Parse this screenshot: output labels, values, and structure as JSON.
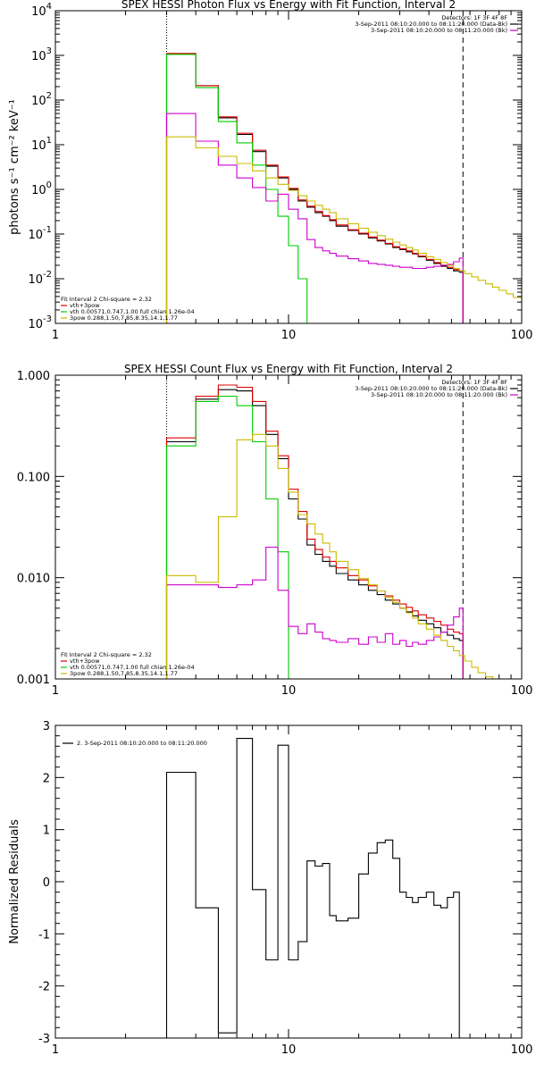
{
  "chart_data": [
    {
      "type": "line",
      "title": "SPEX HESSI Photon Flux vs Energy with Fit Function, Interval 2",
      "xlabel": "",
      "ylabel": "photons s⁻¹ cm⁻² keV⁻¹",
      "xscale": "log",
      "yscale": "log",
      "xlim": [
        1,
        100
      ],
      "ylim": [
        0.001,
        10000
      ],
      "xticks": [
        1,
        10,
        100
      ],
      "yticks": [
        {
          "mant": "10",
          "exp": "-3",
          "v": 0.001
        },
        {
          "mant": "10",
          "exp": "-2",
          "v": 0.01
        },
        {
          "mant": "10",
          "exp": "-1",
          "v": 0.1
        },
        {
          "mant": "10",
          "exp": "0",
          "v": 1
        },
        {
          "mant": "10",
          "exp": "1",
          "v": 10
        },
        {
          "mant": "10",
          "exp": "2",
          "v": 100
        },
        {
          "mant": "10",
          "exp": "3",
          "v": 1000
        },
        {
          "mant": "10",
          "exp": "4",
          "v": 10000
        }
      ],
      "vlines": [
        {
          "x": 3.0,
          "style": "dotted"
        },
        {
          "x": 56,
          "style": "dashed"
        }
      ],
      "top_legend": [
        {
          "text": "Detectors: 1F 3F 4F 8F",
          "color": ""
        },
        {
          "text": "3-Sep-2011 08:10:20.000 to 08:11:20.000 (Data-Bk)",
          "color": "#000000"
        },
        {
          "text": "3-Sep-2011 08:10:20.000 to 08:11:20.000 (Bk)",
          "color": "#cc00cc"
        }
      ],
      "fit_legend": [
        {
          "text": "Fit Interval 2   Chi-square = 2.32",
          "color": ""
        },
        {
          "text": "vth+3pow",
          "color": "#dd0000"
        },
        {
          "text": "vth 0.00571,0.747,1.00  full chian 1.26e-04",
          "color": "#00cc00"
        },
        {
          "text": "3pow 0.288,1.50,7.85,8.35,14.1,1.77",
          "color": "#ccbb00"
        }
      ],
      "series": [
        {
          "color": "#000000",
          "x_start": 3.0,
          "edges": [
            4.0,
            5.0,
            6.0,
            7.0,
            8.0,
            9.0,
            10.0,
            11.0,
            12.0,
            13.0,
            14.0,
            15.0,
            16.0,
            18.0,
            20.0,
            22.0,
            24.0,
            26.0,
            28.0,
            30.0,
            32.0,
            34.0,
            36.0,
            39.0,
            42.0,
            45.0,
            48.0,
            51.0,
            54.0,
            56.0
          ],
          "values": [
            1100,
            210,
            40,
            17,
            7,
            3.3,
            1.8,
            1.0,
            0.55,
            0.4,
            0.3,
            0.25,
            0.2,
            0.15,
            0.12,
            0.1,
            0.082,
            0.07,
            0.06,
            0.05,
            0.045,
            0.04,
            0.036,
            0.031,
            0.026,
            0.022,
            0.019,
            0.017,
            0.015,
            0.014
          ]
        },
        {
          "color": "#dd0000",
          "x_start": 3.0,
          "edges": [
            4.0,
            5.0,
            6.0,
            7.0,
            8.0,
            9.0,
            10.0,
            11.0,
            12.0,
            13.0,
            14.0,
            15.0,
            16.0,
            18.0,
            20.0,
            22.0,
            24.0,
            26.0,
            28.0,
            30.0,
            32.0,
            34.0,
            36.0,
            39.0,
            42.0,
            45.0,
            48.0,
            51.0,
            54.0,
            56.0
          ],
          "values": [
            1100,
            210,
            42,
            18,
            7.5,
            3.5,
            1.9,
            1.05,
            0.58,
            0.42,
            0.32,
            0.26,
            0.21,
            0.16,
            0.125,
            0.104,
            0.086,
            0.073,
            0.062,
            0.052,
            0.047,
            0.042,
            0.037,
            0.032,
            0.027,
            0.023,
            0.02,
            0.018,
            0.016,
            0.015
          ]
        },
        {
          "color": "#00cc00",
          "x_start": 3.0,
          "edges": [
            4.0,
            5.0,
            6.0,
            7.0,
            8.0,
            9.0,
            10.0,
            11.0,
            12.0
          ],
          "values": [
            1050,
            190,
            33,
            11,
            3.5,
            1.0,
            0.25,
            0.055,
            0.01
          ]
        },
        {
          "color": "#cc00cc",
          "x_start": 3.0,
          "edges": [
            4.0,
            5.0,
            6.0,
            7.0,
            8.0,
            9.0,
            10.0,
            11.0,
            12.0,
            13.0,
            14.0,
            15.0,
            16.0,
            18.0,
            20.0,
            22.0,
            24.0,
            26.0,
            28.0,
            30.0,
            32.0,
            34.0,
            36.0,
            39.0,
            42.0,
            45.0,
            48.0,
            51.0,
            54.0,
            56.0
          ],
          "values": [
            50,
            12,
            3.5,
            1.8,
            1.1,
            0.55,
            0.78,
            0.36,
            0.22,
            0.075,
            0.05,
            0.042,
            0.037,
            0.032,
            0.028,
            0.025,
            0.022,
            0.021,
            0.02,
            0.019,
            0.018,
            0.018,
            0.017,
            0.017,
            0.018,
            0.019,
            0.02,
            0.021,
            0.024,
            0.029
          ]
        },
        {
          "color": "#ccbb00",
          "x_start": 3.0,
          "edges": [
            4.0,
            5.0,
            6.0,
            7.0,
            8.0,
            9.0,
            10.0,
            11.0,
            12.0,
            13.0,
            14.0,
            15.0,
            16.0,
            18.0,
            20.0,
            22.0,
            24.0,
            26.0,
            28.0,
            30.0,
            32.0,
            34.0,
            36.0,
            39.0,
            42.0,
            45.0,
            48.0,
            51.0,
            54.0,
            57.0,
            61.0,
            65.0,
            70.0,
            75.0,
            80.0,
            86.0,
            92.0,
            100.0
          ],
          "values": [
            15,
            8.5,
            5.5,
            3.8,
            2.6,
            1.8,
            1.3,
            0.95,
            0.72,
            0.55,
            0.44,
            0.36,
            0.3,
            0.22,
            0.17,
            0.135,
            0.11,
            0.092,
            0.077,
            0.066,
            0.057,
            0.05,
            0.044,
            0.037,
            0.031,
            0.027,
            0.023,
            0.02,
            0.017,
            0.015,
            0.013,
            0.011,
            0.0092,
            0.0077,
            0.0065,
            0.0055,
            0.0046,
            0.0038
          ]
        }
      ]
    },
    {
      "type": "line",
      "title": "SPEX HESSI Count Flux vs Energy with Fit Function, Interval 2",
      "xlabel": "",
      "ylabel": "",
      "xscale": "log",
      "yscale": "log",
      "xlim": [
        1,
        100
      ],
      "ylim": [
        0.001,
        1.0
      ],
      "xticks": [
        1,
        10,
        100
      ],
      "yticks": [
        {
          "text": "0.001",
          "v": 0.001
        },
        {
          "text": "0.010",
          "v": 0.01
        },
        {
          "text": "0.100",
          "v": 0.1
        },
        {
          "text": "1.000",
          "v": 1.0
        }
      ],
      "vlines": [
        {
          "x": 3.0,
          "style": "dotted"
        },
        {
          "x": 56,
          "style": "dashed"
        }
      ],
      "top_legend": [
        {
          "text": "Detectors: 1F 3F 4F 8F",
          "color": ""
        },
        {
          "text": "3-Sep-2011 08:10:20.000 to 08:11:20.000 (Data-Bk)",
          "color": "#000000"
        },
        {
          "text": "3-Sep-2011 08:10:20.000 to 08:11:20.000 (Bk)",
          "color": "#cc00cc"
        }
      ],
      "fit_legend": [
        {
          "text": "Fit Interval 2   Chi-square = 2.32",
          "color": ""
        },
        {
          "text": "vth+3pow",
          "color": "#dd0000"
        },
        {
          "text": "vth 0.00571,0.747,1.00  full chian 1.26e-04",
          "color": "#00cc00"
        },
        {
          "text": "3pow 0.288,1.50,7.85,8.35,14.1,1.77",
          "color": "#ccbb00"
        }
      ],
      "series": [
        {
          "color": "#000000",
          "x_start": 3.0,
          "edges": [
            4.0,
            5.0,
            6.0,
            7.0,
            8.0,
            9.0,
            10.0,
            11.0,
            12.0,
            13.0,
            14.0,
            15.0,
            16.0,
            18.0,
            20.0,
            22.0,
            24.0,
            26.0,
            28.0,
            30.0,
            32.0,
            34.0,
            36.0,
            39.0,
            42.0,
            45.0,
            48.0,
            51.0,
            54.0,
            56.0
          ],
          "values": [
            0.22,
            0.58,
            0.72,
            0.7,
            0.5,
            0.26,
            0.15,
            0.06,
            0.038,
            0.021,
            0.017,
            0.0145,
            0.013,
            0.011,
            0.0095,
            0.0085,
            0.0075,
            0.0068,
            0.006,
            0.0055,
            0.005,
            0.0046,
            0.0042,
            0.0038,
            0.0035,
            0.0032,
            0.0029,
            0.0027,
            0.0025,
            0.0024
          ]
        },
        {
          "color": "#dd0000",
          "x_start": 3.0,
          "edges": [
            4.0,
            5.0,
            6.0,
            7.0,
            8.0,
            9.0,
            10.0,
            11.0,
            12.0,
            13.0,
            14.0,
            15.0,
            16.0,
            18.0,
            20.0,
            22.0,
            24.0,
            26.0,
            28.0,
            30.0,
            32.0,
            34.0,
            36.0,
            39.0,
            42.0,
            45.0,
            48.0,
            51.0,
            54.0,
            56.0
          ],
          "values": [
            0.24,
            0.62,
            0.8,
            0.76,
            0.55,
            0.28,
            0.16,
            0.075,
            0.045,
            0.024,
            0.019,
            0.016,
            0.0145,
            0.0125,
            0.0105,
            0.0095,
            0.0083,
            0.0074,
            0.0066,
            0.006,
            0.0055,
            0.0051,
            0.0047,
            0.0043,
            0.004,
            0.0037,
            0.0034,
            0.0031,
            0.0029,
            0.0028
          ]
        },
        {
          "color": "#00cc00",
          "x_start": 3.0,
          "edges": [
            4.0,
            5.0,
            6.0,
            7.0,
            8.0,
            9.0,
            10.0,
            11.0
          ],
          "values": [
            0.2,
            0.55,
            0.62,
            0.5,
            0.22,
            0.06,
            0.018,
            0.001
          ]
        },
        {
          "color": "#cc00cc",
          "x_start": 3.0,
          "edges": [
            4.0,
            5.0,
            6.0,
            7.0,
            8.0,
            9.0,
            10.0,
            11.0,
            12.0,
            13.0,
            14.0,
            15.0,
            16.0,
            18.0,
            20.0,
            22.0,
            24.0,
            26.0,
            28.0,
            30.0,
            32.0,
            34.0,
            36.0,
            39.0,
            42.0,
            45.0,
            48.0,
            51.0,
            54.0,
            56.0
          ],
          "values": [
            0.0085,
            0.0085,
            0.008,
            0.0085,
            0.0095,
            0.02,
            0.0075,
            0.0033,
            0.0028,
            0.0035,
            0.0029,
            0.0025,
            0.0024,
            0.0023,
            0.0025,
            0.0022,
            0.0026,
            0.0023,
            0.0028,
            0.0022,
            0.0024,
            0.0021,
            0.0023,
            0.0022,
            0.0024,
            0.0026,
            0.0029,
            0.0034,
            0.0041,
            0.005
          ]
        },
        {
          "color": "#ccbb00",
          "x_start": 3.0,
          "edges": [
            4.0,
            5.0,
            6.0,
            7.0,
            8.0,
            9.0,
            10.0,
            11.0,
            12.0,
            13.0,
            14.0,
            15.0,
            16.0,
            18.0,
            20.0,
            22.0,
            24.0,
            26.0,
            28.0,
            30.0,
            32.0,
            34.0,
            36.0,
            39.0,
            42.0,
            45.0,
            48.0,
            51.0,
            54.0,
            57.0,
            61.0,
            65.0,
            70.0,
            75.0,
            80.0
          ],
          "values": [
            0.0105,
            0.009,
            0.04,
            0.23,
            0.26,
            0.2,
            0.12,
            0.07,
            0.042,
            0.034,
            0.027,
            0.022,
            0.018,
            0.0145,
            0.012,
            0.0098,
            0.0085,
            0.0074,
            0.0064,
            0.0057,
            0.005,
            0.0045,
            0.004,
            0.0035,
            0.0031,
            0.0027,
            0.0024,
            0.0021,
            0.0019,
            0.0017,
            0.0015,
            0.0013,
            0.00115,
            0.00105,
            0.001
          ]
        }
      ]
    },
    {
      "type": "line",
      "title": "",
      "xlabel": "",
      "ylabel": "Normalized Residuals",
      "xscale": "log",
      "yscale": "linear",
      "xlim": [
        1,
        100
      ],
      "ylim": [
        -3,
        3
      ],
      "xticks": [
        1,
        10,
        100
      ],
      "yticks": [
        {
          "text": "-3",
          "v": -3
        },
        {
          "text": "-2",
          "v": -2
        },
        {
          "text": "-1",
          "v": -1
        },
        {
          "text": "0",
          "v": 0
        },
        {
          "text": "1",
          "v": 1
        },
        {
          "text": "2",
          "v": 2
        },
        {
          "text": "3",
          "v": 3
        }
      ],
      "vlines": [],
      "top_legend": [
        {
          "text": "2.  3-Sep-2011 08:10:20.000 to 08:11:20.000",
          "color": "#000000"
        }
      ],
      "fit_legend": [],
      "series": [
        {
          "color": "#000000",
          "x_start": 3.0,
          "edges": [
            4.0,
            5.0,
            6.0,
            7.0,
            8.0,
            9.0,
            10.0,
            11.0,
            12.0,
            13.0,
            14.0,
            15.0,
            16.0,
            18.0,
            20.0,
            22.0,
            24.0,
            26.0,
            28.0,
            30.0,
            32.0,
            34.0,
            36.0,
            39.0,
            42.0,
            45.0,
            48.0,
            51.0,
            54.0,
            56.0
          ],
          "values": [
            2.1,
            -0.5,
            -2.9,
            2.75,
            -0.15,
            -1.5,
            2.62,
            -1.5,
            -1.15,
            0.4,
            0.3,
            0.35,
            -0.65,
            -0.75,
            -0.7,
            0.15,
            0.55,
            0.75,
            0.8,
            0.45,
            -0.2,
            -0.3,
            -0.4,
            -0.3,
            -0.2,
            -0.45,
            -0.5,
            -0.3,
            -0.2,
            -3.1
          ]
        }
      ]
    }
  ]
}
